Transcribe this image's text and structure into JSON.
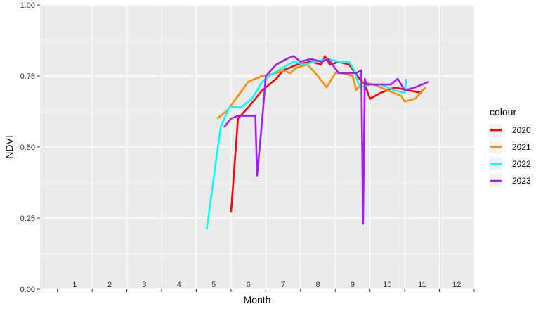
{
  "chart_data": {
    "type": "line",
    "xlabel": "Month",
    "ylabel": "NDVI",
    "xlim": [
      0,
      12.5
    ],
    "ylim": [
      0,
      1
    ],
    "month_labels": [
      "1",
      "2",
      "3",
      "4",
      "5",
      "6",
      "7",
      "8",
      "9",
      "10",
      "11",
      "12"
    ],
    "y_ticks": [
      "0.00",
      "0.25",
      "0.50",
      "0.75",
      "1.00"
    ],
    "grid": true,
    "legend": {
      "title": "colour",
      "position": "right"
    },
    "series": [
      {
        "name": "2020",
        "color": "#ff0000",
        "points": [
          [
            5.5,
            0.27
          ],
          [
            5.7,
            0.6
          ],
          [
            6.0,
            0.64
          ],
          [
            6.4,
            0.7
          ],
          [
            6.8,
            0.74
          ],
          [
            7.0,
            0.77
          ],
          [
            7.4,
            0.79
          ],
          [
            7.8,
            0.8
          ],
          [
            8.1,
            0.79
          ],
          [
            8.2,
            0.82
          ],
          [
            8.35,
            0.79
          ],
          [
            8.6,
            0.8
          ],
          [
            8.9,
            0.79
          ],
          [
            9.2,
            0.74
          ],
          [
            9.35,
            0.72
          ],
          [
            9.5,
            0.67
          ],
          [
            9.8,
            0.69
          ],
          [
            10.2,
            0.71
          ],
          [
            10.6,
            0.7
          ],
          [
            11.0,
            0.69
          ]
        ]
      },
      {
        "name": "2021",
        "color": "#ff8c00",
        "points": [
          [
            5.1,
            0.6
          ],
          [
            5.4,
            0.63
          ],
          [
            5.7,
            0.68
          ],
          [
            6.0,
            0.73
          ],
          [
            6.4,
            0.75
          ],
          [
            6.8,
            0.76
          ],
          [
            7.0,
            0.77
          ],
          [
            7.2,
            0.76
          ],
          [
            7.4,
            0.78
          ],
          [
            7.7,
            0.79
          ],
          [
            8.0,
            0.75
          ],
          [
            8.25,
            0.71
          ],
          [
            8.5,
            0.76
          ],
          [
            8.7,
            0.76
          ],
          [
            9.0,
            0.75
          ],
          [
            9.1,
            0.7
          ],
          [
            9.3,
            0.73
          ],
          [
            9.6,
            0.72
          ],
          [
            10.0,
            0.7
          ],
          [
            10.4,
            0.68
          ],
          [
            10.5,
            0.66
          ],
          [
            10.8,
            0.67
          ],
          [
            11.1,
            0.71
          ]
        ]
      },
      {
        "name": "2022",
        "color": "#00ffff",
        "points": [
          [
            4.8,
            0.21
          ],
          [
            5.2,
            0.57
          ],
          [
            5.45,
            0.64
          ],
          [
            5.8,
            0.64
          ],
          [
            6.1,
            0.67
          ],
          [
            6.4,
            0.73
          ],
          [
            6.6,
            0.75
          ],
          [
            7.0,
            0.78
          ],
          [
            7.3,
            0.8
          ],
          [
            7.6,
            0.79
          ],
          [
            7.9,
            0.8
          ],
          [
            8.3,
            0.81
          ],
          [
            8.6,
            0.8
          ],
          [
            8.9,
            0.8
          ],
          [
            9.05,
            0.77
          ],
          [
            9.2,
            0.71
          ],
          [
            9.5,
            0.72
          ],
          [
            9.8,
            0.72
          ],
          [
            10.2,
            0.7
          ],
          [
            10.5,
            0.69
          ],
          [
            10.55,
            0.74
          ]
        ]
      },
      {
        "name": "2023",
        "color": "#a020f0",
        "points": [
          [
            5.3,
            0.57
          ],
          [
            5.5,
            0.6
          ],
          [
            5.7,
            0.61
          ],
          [
            6.0,
            0.61
          ],
          [
            6.2,
            0.61
          ],
          [
            6.25,
            0.4
          ],
          [
            6.4,
            0.6
          ],
          [
            6.5,
            0.75
          ],
          [
            6.8,
            0.79
          ],
          [
            7.1,
            0.81
          ],
          [
            7.3,
            0.82
          ],
          [
            7.5,
            0.8
          ],
          [
            7.8,
            0.81
          ],
          [
            8.1,
            0.8
          ],
          [
            8.3,
            0.81
          ],
          [
            8.6,
            0.76
          ],
          [
            8.9,
            0.76
          ],
          [
            9.1,
            0.76
          ],
          [
            9.25,
            0.77
          ],
          [
            9.3,
            0.23
          ],
          [
            9.35,
            0.74
          ],
          [
            9.4,
            0.72
          ],
          [
            9.7,
            0.72
          ],
          [
            10.1,
            0.72
          ],
          [
            10.3,
            0.74
          ],
          [
            10.5,
            0.7
          ],
          [
            10.8,
            0.71
          ],
          [
            11.2,
            0.73
          ]
        ]
      }
    ]
  }
}
